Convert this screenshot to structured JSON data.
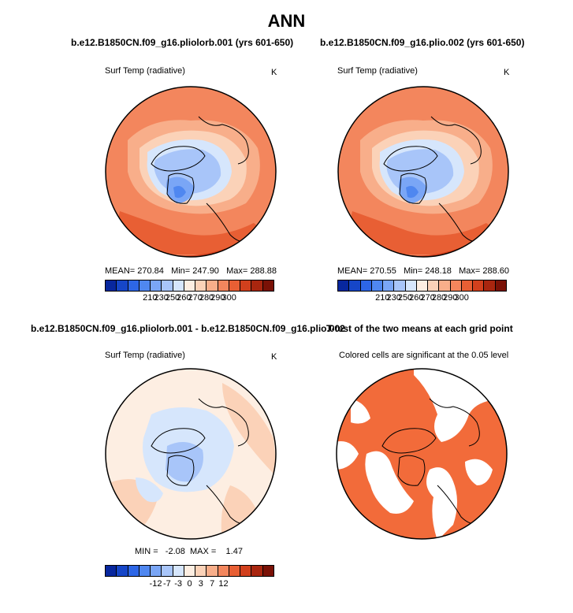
{
  "title": "ANN",
  "panels": {
    "p1": {
      "title": "b.e12.B1850CN.f09_g16.pliolorb.001 (yrs 601-650)",
      "variable": "Surf Temp (radiative)",
      "units": "K",
      "stats": "MEAN= 270.84   Min= 247.90   Max= 288.88"
    },
    "p2": {
      "title": "b.e12.B1850CN.f09_g16.plio.002 (yrs 601-650)",
      "variable": "Surf Temp (radiative)",
      "units": "K",
      "stats": "MEAN= 270.55   Min= 248.18   Max= 288.60"
    },
    "p3": {
      "title": "b.e12.B1850CN.f09_g16.pliolorb.001 - b.e12.B1850CN.f09_g16.plio.002",
      "variable": "Surf Temp (radiative)",
      "units": "K",
      "stats": "MIN =   -2.08  MAX =    1.47"
    },
    "p4": {
      "title": "T-test of the two means at each grid point",
      "subtitle": "Colored cells are significant at the 0.05 level"
    }
  },
  "colorbar_abs": {
    "colors": [
      "#08279e",
      "#1646c8",
      "#2d66e6",
      "#4f87f0",
      "#7aa6f6",
      "#a8c5f9",
      "#d6e6fc",
      "#fdeee2",
      "#fbd2b8",
      "#f8ae8a",
      "#f3865d",
      "#e85f34",
      "#d2401d",
      "#a9260f",
      "#7a1106"
    ],
    "labels": [
      "210",
      "230",
      "250",
      "260",
      "270",
      "280",
      "290",
      "300"
    ]
  },
  "colorbar_diff": {
    "colors": [
      "#08279e",
      "#1646c8",
      "#2d66e6",
      "#4f87f0",
      "#7aa6f6",
      "#a8c5f9",
      "#d6e6fc",
      "#fdeee2",
      "#fbd2b8",
      "#f8ae8a",
      "#f3865d",
      "#e85f34",
      "#d2401d",
      "#a9260f",
      "#7a1106"
    ],
    "labels": [
      "-12",
      "-7",
      "-3",
      "0",
      "3",
      "7",
      "12"
    ]
  }
}
